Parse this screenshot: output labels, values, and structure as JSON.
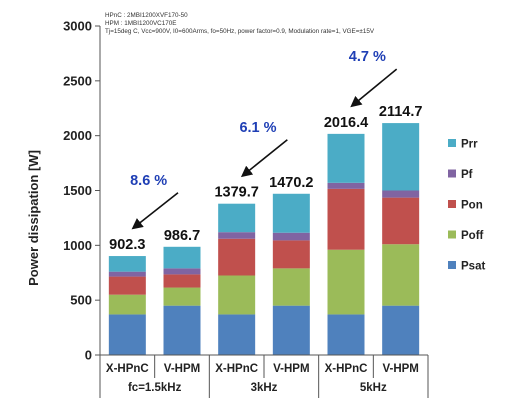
{
  "colors": {
    "Psat": "#4f81bd",
    "Poff": "#9bbb59",
    "Pon": "#c0504d",
    "Pf": "#8064a2",
    "Prr": "#4bacc6",
    "percent_text": "#1f3fb5"
  },
  "conditions": [
    "HPnC : 2MBI1200XVF170-50",
    "HPM : 1MBI1200VC170E",
    "Tj=15deg C, Vcc=900V, I0=600Arms, fo=50Hz, power factor=0.9, Modulation rate=1, VGE=±15V"
  ],
  "chart_data": {
    "type": "bar",
    "stacked": true,
    "ylabel": "Power dissipation [W]",
    "ylim": [
      0,
      3000
    ],
    "yticks": [
      0,
      500,
      1000,
      1500,
      2000,
      2500,
      3000
    ],
    "grid": false,
    "legend_position": "right",
    "categories": [
      "X-HPnC",
      "V-HPM",
      "X-HPnC",
      "V-HPM",
      "X-HPnC",
      "V-HPM"
    ],
    "groups": [
      {
        "label": "fc=1.5kHz",
        "reduction": "8.6 %"
      },
      {
        "label": "3kHz",
        "reduction": "6.1 %"
      },
      {
        "label": "5kHz",
        "reduction": "4.7 %"
      }
    ],
    "totals": [
      "902.3",
      "986.7",
      "1379.7",
      "1470.2",
      "2016.4",
      "2114.7"
    ],
    "series": [
      {
        "name": "Psat",
        "values": [
          370,
          450,
          370,
          450,
          370,
          450
        ]
      },
      {
        "name": "Poff",
        "values": [
          180,
          165,
          355,
          340,
          590,
          560
        ]
      },
      {
        "name": "Pon",
        "values": [
          165,
          120,
          335,
          255,
          555,
          425
        ]
      },
      {
        "name": "Pf",
        "values": [
          45,
          55,
          60,
          70,
          55,
          65
        ]
      },
      {
        "name": "Prr",
        "values": [
          142.3,
          196.7,
          259.7,
          355.2,
          446.4,
          614.7
        ]
      }
    ],
    "legend_order": [
      "Prr",
      "Pf",
      "Pon",
      "Poff",
      "Psat"
    ]
  }
}
